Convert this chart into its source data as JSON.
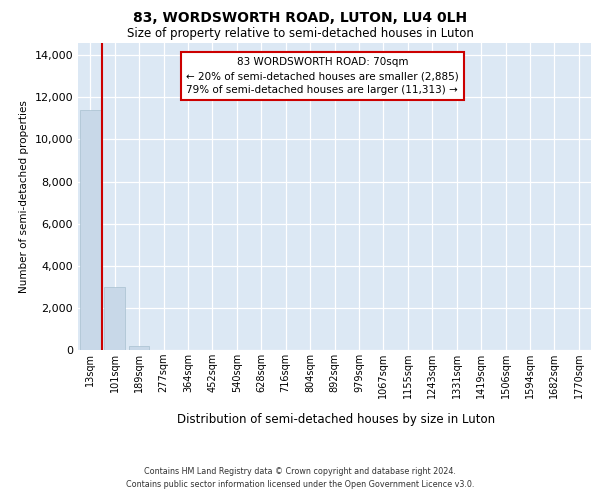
{
  "title1": "83, WORDSWORTH ROAD, LUTON, LU4 0LH",
  "title2": "Size of property relative to semi-detached houses in Luton",
  "xlabel": "Distribution of semi-detached houses by size in Luton",
  "ylabel": "Number of semi-detached properties",
  "categories": [
    "13sqm",
    "101sqm",
    "189sqm",
    "277sqm",
    "364sqm",
    "452sqm",
    "540sqm",
    "628sqm",
    "716sqm",
    "804sqm",
    "892sqm",
    "979sqm",
    "1067sqm",
    "1155sqm",
    "1243sqm",
    "1331sqm",
    "1419sqm",
    "1506sqm",
    "1594sqm",
    "1682sqm",
    "1770sqm"
  ],
  "values": [
    11400,
    3000,
    180,
    0,
    0,
    0,
    0,
    0,
    0,
    0,
    0,
    0,
    0,
    0,
    0,
    0,
    0,
    0,
    0,
    0,
    0
  ],
  "bar_color": "#c8d8e8",
  "bar_edge_color": "#a8c0d0",
  "property_line_color": "#cc0000",
  "annotation_title": "83 WORDSWORTH ROAD: 70sqm",
  "annotation_line1": "← 20% of semi-detached houses are smaller (2,885)",
  "annotation_line2": "79% of semi-detached houses are larger (11,313) →",
  "annotation_box_facecolor": "#ffffff",
  "annotation_box_edgecolor": "#cc0000",
  "ylim_max": 14600,
  "yticks": [
    0,
    2000,
    4000,
    6000,
    8000,
    10000,
    12000,
    14000
  ],
  "grid_color": "#ffffff",
  "bg_color": "#dce8f4",
  "footer1": "Contains HM Land Registry data © Crown copyright and database right 2024.",
  "footer2": "Contains public sector information licensed under the Open Government Licence v3.0."
}
